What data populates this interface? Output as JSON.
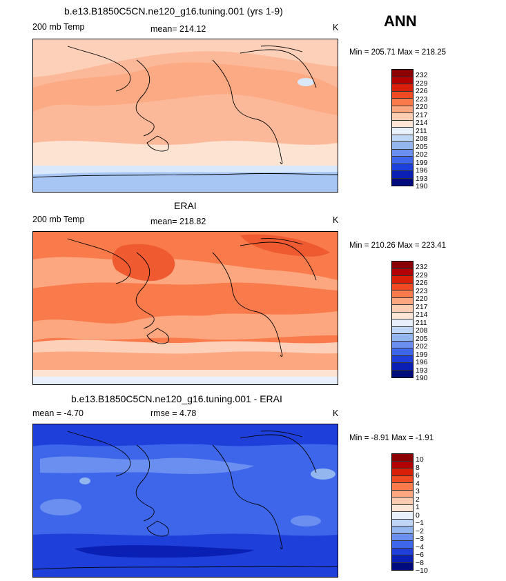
{
  "season": "ANN",
  "palette_temp": [
    "#8b0000",
    "#b30000",
    "#d81f08",
    "#ef4a22",
    "#f97a4a",
    "#fca77f",
    "#fdcdb1",
    "#fde6d6",
    "#e7f0fb",
    "#bfd6f6",
    "#93b6ef",
    "#6b8ff0",
    "#3d66ea",
    "#1e3fd9",
    "#0a1fb3",
    "#000b7c"
  ],
  "panels": [
    {
      "title": "b.e13.B1850C5CN.ne120_g16.tuning.001 (yrs 1-9)",
      "left_label": "200 mb Temp",
      "mid_label": "mean=  214.12",
      "unit": "K",
      "minmax": "Min = 205.71 Max = 218.25",
      "levels": [
        "232",
        "229",
        "226",
        "223",
        "220",
        "217",
        "214",
        "211",
        "208",
        "205",
        "202",
        "199",
        "196",
        "193",
        "190"
      ]
    },
    {
      "title": "ERAI",
      "left_label": "200 mb Temp",
      "mid_label": "mean=  218.82",
      "unit": "K",
      "minmax": "Min = 210.26 Max = 223.41",
      "levels": [
        "232",
        "229",
        "226",
        "223",
        "220",
        "217",
        "214",
        "211",
        "208",
        "205",
        "202",
        "199",
        "196",
        "193",
        "190"
      ]
    },
    {
      "title": "b.e13.B1850C5CN.ne120_g16.tuning.001 - ERAI",
      "left_label": "mean =   -4.70",
      "mid_label": "rmse =     4.78",
      "unit": "K",
      "minmax": "Min =   -8.91  Max =   -1.91",
      "levels": [
        "10",
        "8",
        "6",
        "4",
        "3",
        "2",
        "1",
        "0",
        "−1",
        "−2",
        "−3",
        "−4",
        "−6",
        "−8",
        "−10"
      ]
    }
  ]
}
